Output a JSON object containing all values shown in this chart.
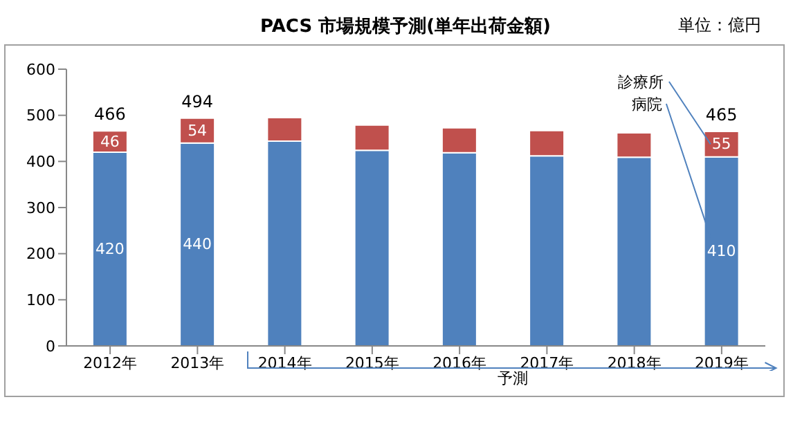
{
  "chart_data": {
    "type": "bar",
    "title": "PACS 市場規模予測(単年出荷金額)",
    "annotations": [
      "単位：億円",
      "予測"
    ],
    "categories": [
      "2012年",
      "2013年",
      "2014年",
      "2015年",
      "2016年",
      "2017年",
      "2018年",
      "2019年"
    ],
    "stacked": true,
    "series": [
      {
        "name": "病院",
        "color": "#4f81bd",
        "values": [
          420,
          440,
          444,
          424,
          419,
          412,
          409,
          410
        ],
        "value_labels": [
          "420",
          "440",
          null,
          null,
          null,
          null,
          null,
          "410"
        ]
      },
      {
        "name": "診療所",
        "color": "#c0504d",
        "values": [
          46,
          54,
          51,
          55,
          54,
          55,
          53,
          55
        ],
        "value_labels": [
          "46",
          "54",
          null,
          null,
          null,
          null,
          null,
          "55"
        ]
      }
    ],
    "totals": [
      "466",
      "494",
      null,
      null,
      null,
      null,
      null,
      "465"
    ],
    "ylim": [
      0,
      600
    ],
    "yticks": [
      0,
      100,
      200,
      300,
      400,
      500,
      600
    ],
    "grid": false,
    "legend": false
  }
}
